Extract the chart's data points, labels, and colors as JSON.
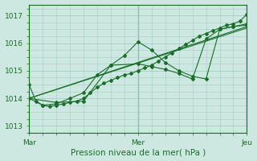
{
  "title": "Pression niveau de la mer( hPa )",
  "bg_color": "#cce8e0",
  "grid_color": "#a8ccC4",
  "line_color": "#1a6e2a",
  "ylim": [
    1012.8,
    1017.4
  ],
  "yticks": [
    1013,
    1014,
    1015,
    1016,
    1017
  ],
  "xlim": [
    0,
    96
  ],
  "xtick_positions": [
    0,
    48,
    96
  ],
  "xtick_labels": [
    "Mar",
    "Mer",
    "Jeu"
  ],
  "vline_positions": [
    0,
    48,
    96
  ],
  "series": [
    {
      "x": [
        0,
        3,
        6,
        9,
        12,
        15,
        18,
        21,
        24,
        27,
        30,
        33,
        36,
        39,
        42,
        45,
        48,
        51,
        54,
        57,
        60,
        63,
        66,
        69,
        72,
        75,
        78,
        81,
        84,
        87,
        90,
        93,
        96
      ],
      "y": [
        1014.5,
        1013.9,
        1013.75,
        1013.7,
        1013.75,
        1013.8,
        1013.85,
        1013.9,
        1014.0,
        1014.2,
        1014.4,
        1014.55,
        1014.65,
        1014.75,
        1014.85,
        1014.9,
        1015.0,
        1015.1,
        1015.2,
        1015.35,
        1015.5,
        1015.65,
        1015.8,
        1015.95,
        1016.1,
        1016.25,
        1016.35,
        1016.45,
        1016.55,
        1016.65,
        1016.7,
        1016.8,
        1017.05
      ],
      "marker": "D",
      "markersize": 2.0,
      "linewidth": 0.8
    },
    {
      "x": [
        0,
        6,
        12,
        18,
        24,
        30,
        36,
        42,
        48,
        54,
        60,
        66,
        72,
        78,
        84,
        90,
        96
      ],
      "y": [
        1014.0,
        1013.75,
        1013.8,
        1014.0,
        1014.2,
        1014.85,
        1015.2,
        1015.55,
        1016.05,
        1015.75,
        1015.3,
        1015.0,
        1014.8,
        1014.7,
        1016.5,
        1016.6,
        1016.65
      ],
      "marker": "D",
      "markersize": 2.0,
      "linewidth": 0.8
    },
    {
      "x": [
        0,
        96
      ],
      "y": [
        1014.0,
        1016.6
      ],
      "marker": null,
      "markersize": 0,
      "linewidth": 0.8
    },
    {
      "x": [
        0,
        96
      ],
      "y": [
        1014.0,
        1016.55
      ],
      "marker": null,
      "markersize": 0,
      "linewidth": 0.8
    },
    {
      "x": [
        0,
        12,
        24,
        36,
        48,
        54,
        60,
        66,
        72,
        78,
        84,
        90,
        96
      ],
      "y": [
        1014.0,
        1013.85,
        1013.9,
        1015.2,
        1015.25,
        1015.15,
        1015.05,
        1014.9,
        1014.7,
        1016.15,
        1016.5,
        1016.6,
        1016.7
      ],
      "marker": "D",
      "markersize": 2.0,
      "linewidth": 0.8
    }
  ]
}
